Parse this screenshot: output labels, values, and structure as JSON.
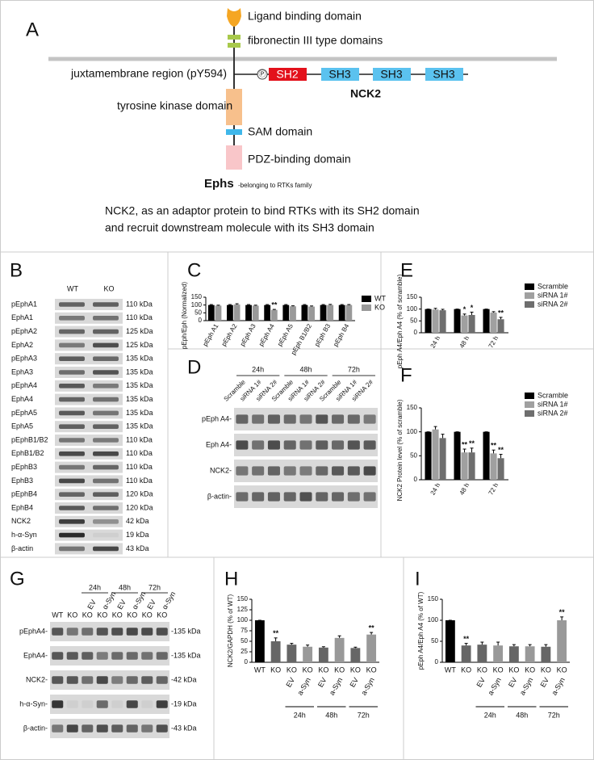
{
  "panels": [
    "A",
    "B",
    "C",
    "D",
    "E",
    "F",
    "G",
    "H",
    "I"
  ],
  "diagram": {
    "ligand": "Ligand binding domain",
    "fibronectin": "fibronectin III type domains",
    "juxtamembrane": "juxtamembrane region (pY594)",
    "phospho": "Ⓟ",
    "sh2": "SH2",
    "sh3": [
      "SH3",
      "SH3",
      "SH3"
    ],
    "nck2": "NCK2",
    "kinase": "tyrosine kinase domain",
    "sam": "SAM domain",
    "pdz": "PDZ-binding domain",
    "ephs": "Ephs",
    "ephs_note": "-belonging to RTKs family",
    "caption": [
      "NCK2, as an adaptor protein to bind RTKs with its SH2 domain",
      "and recruit downstream molecule with its SH3 domain"
    ]
  },
  "blot_b": {
    "lanes": [
      "WT",
      "KO"
    ],
    "rows": [
      {
        "label": "pEphA1",
        "size": "110 kDa"
      },
      {
        "label": "EphA1",
        "size": "110 kDa"
      },
      {
        "label": "pEphA2",
        "size": "125 kDa"
      },
      {
        "label": "EphA2",
        "size": "125 kDa"
      },
      {
        "label": "pEphA3",
        "size": "135 kDa"
      },
      {
        "label": "EphA3",
        "size": "135 kDa"
      },
      {
        "label": "pEphA4",
        "size": "135 kDa"
      },
      {
        "label": "EphA4",
        "size": "135 kDa"
      },
      {
        "label": "pEphA5",
        "size": "135 kDa"
      },
      {
        "label": "EphA5",
        "size": "135 kDa"
      },
      {
        "label": "pEphB1/B2",
        "size": "110 kDa"
      },
      {
        "label": "EphB1/B2",
        "size": "110 kDa"
      },
      {
        "label": "pEphB3",
        "size": "110 kDa"
      },
      {
        "label": "EphB3",
        "size": "110 kDa"
      },
      {
        "label": "pEphB4",
        "size": "120 kDa"
      },
      {
        "label": "EphB4",
        "size": "120 kDa"
      },
      {
        "label": "NCK2",
        "size": "42 kDa"
      },
      {
        "label": "h-α-Syn",
        "size": "19 kDa"
      },
      {
        "label": "β-actin",
        "size": "43 kDa"
      }
    ]
  },
  "blot_d": {
    "times": [
      "24h",
      "48h",
      "72h"
    ],
    "lanes": [
      "Scramble",
      "siRNA 1#",
      "siRNA 2#"
    ],
    "rows": [
      "pEph A4-",
      "Eph A4-",
      "NCK2-",
      "β-actin-"
    ]
  },
  "blot_g": {
    "times": [
      "24h",
      "48h",
      "72h"
    ],
    "lanes": [
      "WT",
      "KO",
      "KO",
      "KO",
      "KO",
      "KO",
      "KO",
      "KO"
    ],
    "treatments": [
      null,
      null,
      "EV",
      "α-Syn",
      "EV",
      "α-Syn",
      "EV",
      "α-Syn"
    ],
    "rows": [
      {
        "label": "pEphA4-",
        "size": "-135 kDa"
      },
      {
        "label": "EphA4-",
        "size": "-135 kDa"
      },
      {
        "label": "NCK2-",
        "size": "-42 kDa"
      },
      {
        "label": "h-α-Syn-",
        "size": "-19 kDa"
      },
      {
        "label": "β-actin-",
        "size": "-43 kDa"
      }
    ]
  },
  "chart_data": [
    {
      "type": "bar",
      "ylabel": "pEph/Eph (Normalized)",
      "categories": [
        "pEph A1",
        "pEph A2",
        "pEph A3",
        "pEph A4",
        "pEph A5",
        "pEph B1/B2",
        "pEph B3",
        "pEph B4"
      ],
      "series": [
        {
          "name": "WT",
          "color": "#000000",
          "values": [
            100,
            100,
            100,
            100,
            100,
            100,
            100,
            100
          ],
          "errors": [
            3,
            3,
            3,
            3,
            3,
            3,
            3,
            3
          ]
        },
        {
          "name": "KO",
          "color": "#999999",
          "values": [
            96,
            103,
            96,
            69,
            92,
            90,
            100,
            100
          ],
          "errors": [
            3,
            5,
            3,
            3,
            3,
            4,
            4,
            3
          ]
        }
      ],
      "ylim": [
        0,
        150
      ],
      "yticks": [
        0,
        50,
        100,
        150
      ],
      "annotations": [
        {
          "text": "**",
          "series": 1,
          "index": 3
        }
      ]
    },
    {
      "type": "bar",
      "ylabel": "pEph A4/Eph A4 (% of scramble)",
      "categories": [
        "24 h",
        "48 h",
        "72 h"
      ],
      "series": [
        {
          "name": "Scramble",
          "color": "#000000",
          "values": [
            100,
            100,
            100
          ],
          "errors": [
            0,
            0,
            0
          ]
        },
        {
          "name": "siRNA 1#",
          "color": "#a0a0a0",
          "values": [
            98,
            73,
            85
          ],
          "errors": [
            5,
            6,
            4
          ]
        },
        {
          "name": "siRNA 2#",
          "color": "#6e6e6e",
          "values": [
            95,
            75,
            57
          ],
          "errors": [
            4,
            12,
            8
          ]
        }
      ],
      "ylim": [
        0,
        150
      ],
      "yticks": [
        0,
        50,
        100,
        150
      ],
      "annotations": [
        {
          "text": "*",
          "series": 1,
          "index": 1
        },
        {
          "text": "*",
          "series": 2,
          "index": 1
        },
        {
          "text": "**",
          "series": 2,
          "index": 2
        }
      ]
    },
    {
      "type": "bar",
      "ylabel": "NCK2 Protein level (% of scramble)",
      "categories": [
        "24 h",
        "48 h",
        "72 h"
      ],
      "series": [
        {
          "name": "Scramble",
          "color": "#000000",
          "values": [
            100,
            100,
            100
          ],
          "errors": [
            0,
            0,
            0
          ]
        },
        {
          "name": "siRNA 1#",
          "color": "#a0a0a0",
          "values": [
            105,
            57,
            55
          ],
          "errors": [
            6,
            7,
            7
          ]
        },
        {
          "name": "siRNA 2#",
          "color": "#6e6e6e",
          "values": [
            87,
            57,
            45
          ],
          "errors": [
            8,
            9,
            8
          ]
        }
      ],
      "ylim": [
        0,
        150
      ],
      "yticks": [
        0,
        50,
        100,
        150
      ],
      "annotations": [
        {
          "text": "**",
          "series": 1,
          "index": 1
        },
        {
          "text": "**",
          "series": 2,
          "index": 1
        },
        {
          "text": "**",
          "series": 1,
          "index": 2
        },
        {
          "text": "**",
          "series": 2,
          "index": 2
        }
      ]
    },
    {
      "type": "bar",
      "ylabel": "NCK2/GAPDH (% of WT)",
      "categories": [
        "WT",
        "KO",
        "KO",
        "KO",
        "KO",
        "KO",
        "KO",
        "KO"
      ],
      "treatments": [
        null,
        null,
        "EV",
        "a-Syn",
        "EV",
        "a-Syn",
        "EV",
        "a-Syn"
      ],
      "groups": [
        "24h",
        "48h",
        "72h"
      ],
      "values": [
        100,
        50,
        42,
        37,
        35,
        58,
        34,
        66
      ],
      "errors": [
        0,
        8,
        3,
        4,
        2,
        5,
        2,
        5
      ],
      "colors": [
        "#000000",
        "#666666",
        "#666666",
        "#999999",
        "#666666",
        "#999999",
        "#666666",
        "#999999"
      ],
      "ylim": [
        0,
        150
      ],
      "yticks": [
        0,
        25,
        50,
        75,
        100,
        125,
        150
      ],
      "annotations": [
        {
          "text": "**",
          "index": 1
        },
        {
          "text": "**",
          "index": 7
        }
      ]
    },
    {
      "type": "bar",
      "ylabel": "pEph A4/Eph A4 (% of WT)",
      "categories": [
        "WT",
        "KO",
        "KO",
        "KO",
        "KO",
        "KO",
        "KO",
        "KO"
      ],
      "treatments": [
        null,
        null,
        "EV",
        "a-Syn",
        "EV",
        "a-Syn",
        "EV",
        "a-Syn"
      ],
      "groups": [
        "24h",
        "48h",
        "72h"
      ],
      "values": [
        100,
        40,
        42,
        40,
        38,
        38,
        37,
        100
      ],
      "errors": [
        0,
        5,
        6,
        8,
        4,
        4,
        5,
        8
      ],
      "colors": [
        "#000000",
        "#666666",
        "#666666",
        "#999999",
        "#666666",
        "#999999",
        "#666666",
        "#999999"
      ],
      "ylim": [
        0,
        150
      ],
      "yticks": [
        0,
        50,
        100,
        150
      ],
      "annotations": [
        {
          "text": "**",
          "index": 1
        },
        {
          "text": "**",
          "index": 7
        }
      ]
    }
  ]
}
